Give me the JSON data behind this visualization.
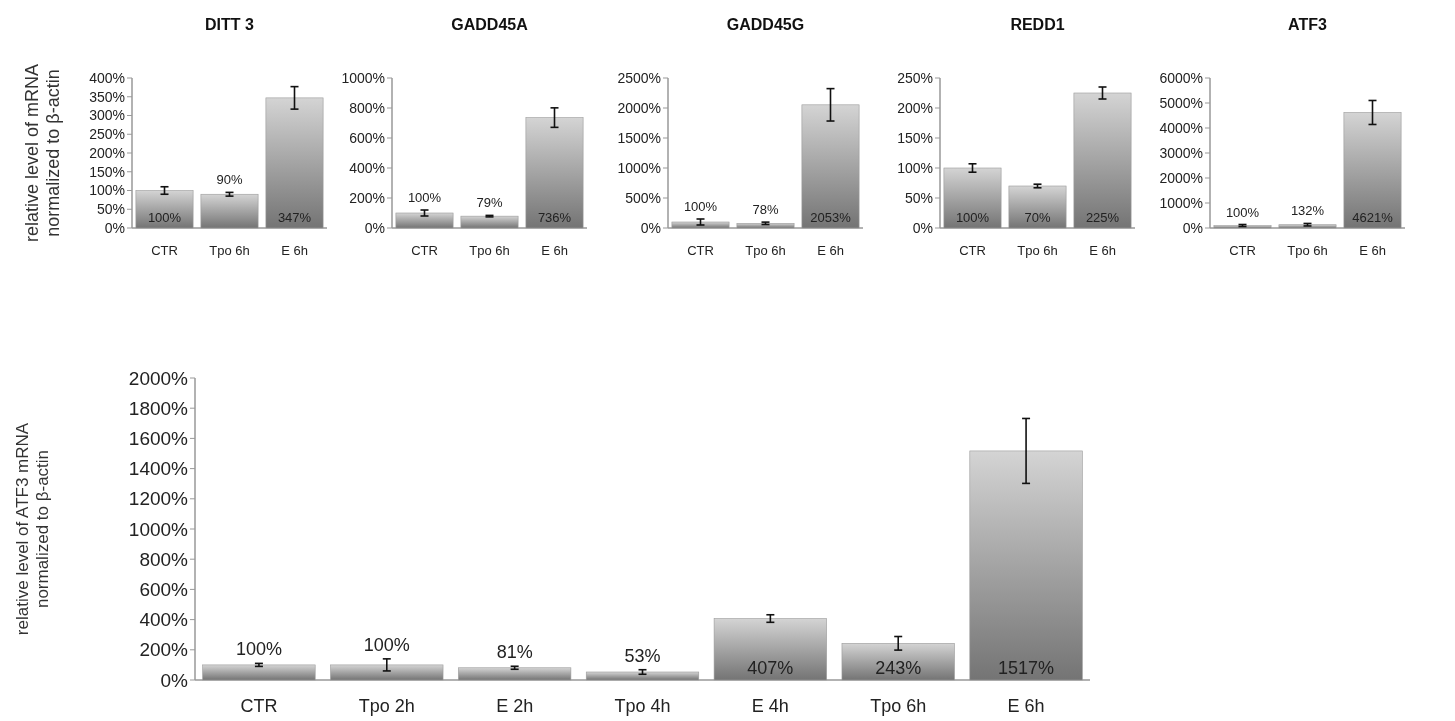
{
  "chart_data": [
    {
      "type": "bar",
      "title": "DITT 3",
      "ylabel": "relative level of mRNA normalized to β-actin",
      "categories": [
        "CTR",
        "Tpo 6h",
        "E 6h"
      ],
      "values": [
        100,
        90,
        347
      ],
      "errors": [
        10,
        5,
        30
      ],
      "value_labels": [
        "100%",
        "90%",
        "347%"
      ],
      "color": "#9a9a9a",
      "ylim": [
        0,
        400
      ],
      "yticks": [
        {
          "value": 0,
          "label": "0%"
        },
        {
          "value": 50,
          "label": "50%"
        },
        {
          "value": 100,
          "label": "100%"
        },
        {
          "value": 150,
          "label": "150%"
        },
        {
          "value": 200,
          "label": "200%"
        },
        {
          "value": 250,
          "label": "250%"
        },
        {
          "value": 300,
          "label": "300%"
        },
        {
          "value": 350,
          "label": "350%"
        },
        {
          "value": 400,
          "label": "400%"
        }
      ]
    },
    {
      "type": "bar",
      "title": "GADD45A",
      "categories": [
        "CTR",
        "Tpo 6h",
        "E 6h"
      ],
      "values": [
        100,
        79,
        736
      ],
      "errors": [
        20,
        5,
        65
      ],
      "value_labels": [
        "100%",
        "79%",
        "736%"
      ],
      "color": "#9a9a9a",
      "ylim": [
        0,
        1000
      ],
      "yticks": [
        {
          "value": 0,
          "label": "0%"
        },
        {
          "value": 200,
          "label": "200%"
        },
        {
          "value": 400,
          "label": "400%"
        },
        {
          "value": 600,
          "label": "600%"
        },
        {
          "value": 800,
          "label": "800%"
        },
        {
          "value": 1000,
          "label": "1000%"
        }
      ]
    },
    {
      "type": "bar",
      "title": "GADD45G",
      "categories": [
        "CTR",
        "Tpo 6h",
        "E 6h"
      ],
      "values": [
        100,
        78,
        2053
      ],
      "errors": [
        50,
        20,
        270
      ],
      "value_labels": [
        "100%",
        "78%",
        "2053%"
      ],
      "color": "#9a9a9a",
      "ylim": [
        0,
        2500
      ],
      "yticks": [
        {
          "value": 0,
          "label": "0%"
        },
        {
          "value": 500,
          "label": "500%"
        },
        {
          "value": 1000,
          "label": "1000%"
        },
        {
          "value": 1500,
          "label": "1500%"
        },
        {
          "value": 2000,
          "label": "2000%"
        },
        {
          "value": 2500,
          "label": "2500%"
        }
      ]
    },
    {
      "type": "bar",
      "title": "REDD1",
      "categories": [
        "CTR",
        "Tpo 6h",
        "E 6h"
      ],
      "values": [
        100,
        70,
        225
      ],
      "errors": [
        7,
        3,
        10
      ],
      "value_labels": [
        "100%",
        "70%",
        "225%"
      ],
      "color": "#9a9a9a",
      "ylim": [
        0,
        250
      ],
      "yticks": [
        {
          "value": 0,
          "label": "0%"
        },
        {
          "value": 50,
          "label": "50%"
        },
        {
          "value": 100,
          "label": "100%"
        },
        {
          "value": 150,
          "label": "150%"
        },
        {
          "value": 200,
          "label": "200%"
        },
        {
          "value": 250,
          "label": "250%"
        }
      ]
    },
    {
      "type": "bar",
      "title": "ATF3",
      "categories": [
        "CTR",
        "Tpo 6h",
        "E 6h"
      ],
      "values": [
        100,
        132,
        4621
      ],
      "errors": [
        40,
        50,
        480
      ],
      "value_labels": [
        "100%",
        "132%",
        "4621%"
      ],
      "color": "#9a9a9a",
      "ylim": [
        0,
        6000
      ],
      "yticks": [
        {
          "value": 0,
          "label": "0%"
        },
        {
          "value": 1000,
          "label": "1000%"
        },
        {
          "value": 2000,
          "label": "2000%"
        },
        {
          "value": 3000,
          "label": "3000%"
        },
        {
          "value": 4000,
          "label": "4000%"
        },
        {
          "value": 5000,
          "label": "5000%"
        },
        {
          "value": 6000,
          "label": "6000%"
        }
      ]
    },
    {
      "type": "bar",
      "ylabel": "relative level of ATF3 mRNA normalized to β-actin",
      "categories": [
        "CTR",
        "Tpo 2h",
        "E 2h",
        "Tpo 4h",
        "E 4h",
        "Tpo 6h",
        "E 6h"
      ],
      "values": [
        100,
        100,
        81,
        53,
        407,
        243,
        1517
      ],
      "errors": [
        10,
        40,
        10,
        15,
        25,
        45,
        215
      ],
      "value_labels": [
        "100%",
        "100%",
        "81%",
        "53%",
        "407%",
        "243%",
        "1517%"
      ],
      "color": "#9a9a9a",
      "ylim": [
        0,
        2000
      ],
      "yticks": [
        {
          "value": 0,
          "label": "0%"
        },
        {
          "value": 200,
          "label": "200%"
        },
        {
          "value": 400,
          "label": "400%"
        },
        {
          "value": 600,
          "label": "600%"
        },
        {
          "value": 800,
          "label": "800%"
        },
        {
          "value": 1000,
          "label": "1000%"
        },
        {
          "value": 1200,
          "label": "1200%"
        },
        {
          "value": 1400,
          "label": "1400%"
        },
        {
          "value": 1600,
          "label": "1600%"
        },
        {
          "value": 1800,
          "label": "1800%"
        },
        {
          "value": 2000,
          "label": "2000%"
        }
      ]
    }
  ]
}
